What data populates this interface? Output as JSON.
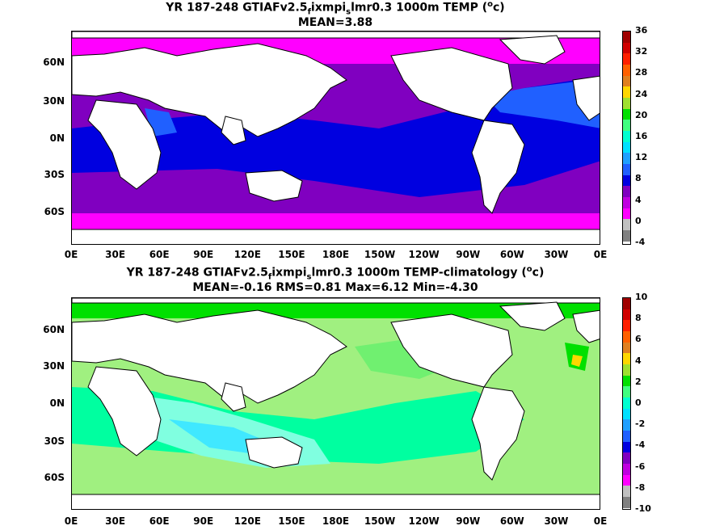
{
  "panel_top": {
    "title_pre": "YR 187-248 GTIAFv2.5",
    "title_sub1": "f",
    "title_mid": "ixmpi",
    "title_sub2": "s",
    "title_post": "lmr0.3 1000m TEMP (",
    "title_sup": "o",
    "title_end": "c)",
    "stats": "MEAN=3.88",
    "colorbar_labels": [
      "36",
      "32",
      "28",
      "24",
      "20",
      "16",
      "12",
      "8",
      "4",
      "0",
      "-4"
    ],
    "colorbar_colors": [
      "#a00000",
      "#d00000",
      "#ff2000",
      "#ff6000",
      "#e08020",
      "#ffd700",
      "#a0e030",
      "#00e000",
      "#40ff80",
      "#00ffd0",
      "#00e0ff",
      "#20a0ff",
      "#2060ff",
      "#0000e0",
      "#8000c0",
      "#c000e0",
      "#ff00ff",
      "#c0c0c0",
      "#808080"
    ]
  },
  "panel_bottom": {
    "title_pre": "YR 187-248 GTIAFv2.5",
    "title_sub1": "f",
    "title_mid": "ixmpi",
    "title_sub2": "s",
    "title_post": "lmr0.3 1000m TEMP-climatology (",
    "title_sup": "o",
    "title_end": "c)",
    "stats": "MEAN=-0.16   RMS=0.81   Max=6.12   Min=-4.30",
    "colorbar_labels": [
      "10",
      "8",
      "6",
      "4",
      "2",
      "0",
      "-2",
      "-4",
      "-6",
      "-8",
      "-10"
    ],
    "colorbar_colors": [
      "#a00000",
      "#d00000",
      "#ff2000",
      "#ff6000",
      "#e08020",
      "#ffd700",
      "#a0e030",
      "#00e000",
      "#40ff80",
      "#00ffd0",
      "#00e0ff",
      "#20a0ff",
      "#2060ff",
      "#0000e0",
      "#8000c0",
      "#c000e0",
      "#ff00ff",
      "#c0c0c0",
      "#808080"
    ]
  },
  "axes": {
    "lat_labels": [
      "60N",
      "30N",
      "0N",
      "30S",
      "60S"
    ],
    "lon_labels": [
      "0E",
      "30E",
      "60E",
      "90E",
      "120E",
      "150E",
      "180E",
      "150W",
      "120W",
      "90W",
      "60W",
      "30W",
      "0E"
    ]
  }
}
